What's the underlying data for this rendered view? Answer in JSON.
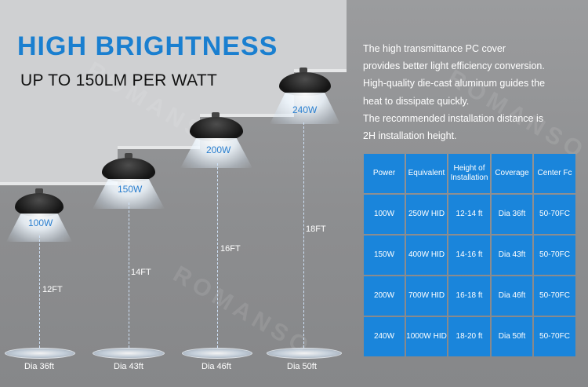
{
  "headline": "HIGH BRIGHTNESS",
  "subheadline": "UP TO 150LM PER WATT",
  "description": [
    "The high transmittance PC cover",
    "provides better light efficiency conversion.",
    "High-quality die-cast aluminum guides the",
    "heat to dissipate quickly.",
    "The recommended installation distance is",
    "2H installation height."
  ],
  "watermark": "ROMANSO",
  "lamps": [
    {
      "wattage": "100W",
      "height": "12FT",
      "diameter": "Dia 36ft"
    },
    {
      "wattage": "150W",
      "height": "14FT",
      "diameter": "Dia 43ft"
    },
    {
      "wattage": "200W",
      "height": "16FT",
      "diameter": "Dia 46ft"
    },
    {
      "wattage": "240W",
      "height": "18FT",
      "diameter": "Dia 50ft"
    }
  ],
  "table": {
    "headers": [
      "Power",
      "Equivalent",
      "Height of Installation",
      "Coverage",
      "Center Fc"
    ],
    "rows": [
      [
        "100W",
        "250W HID",
        "12-14 ft",
        "Dia 36ft",
        "50-70FC"
      ],
      [
        "150W",
        "400W HID",
        "14-16 ft",
        "Dia 43ft",
        "50-70FC"
      ],
      [
        "200W",
        "700W HID",
        "16-18 ft",
        "Dia 46ft",
        "50-70FC"
      ],
      [
        "240W",
        "1000W HID",
        "18-20 ft",
        "Dia 50ft",
        "50-70FC"
      ]
    ]
  },
  "colors": {
    "accent": "#1a7fd0",
    "table_cell": "#1a85db",
    "background": "#8f9092",
    "steps": "#cfd0d2"
  }
}
